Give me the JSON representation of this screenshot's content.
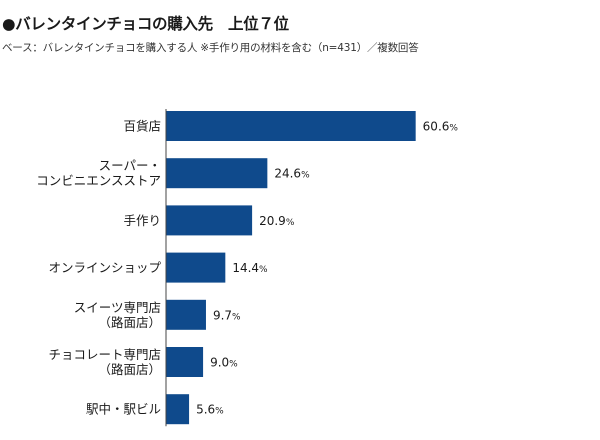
{
  "title": "●バレンタインチョコの購入先　上位７位",
  "subtitle": "ベース：バレンタインチョコを購入する人 ※手作り用の材料を含む（n=431）／複数回答",
  "chart_data": {
    "type": "bar",
    "orientation": "horizontal",
    "categories": [
      [
        "百貨店"
      ],
      [
        "スーパー・",
        "コンビニエンスストア"
      ],
      [
        "手作り"
      ],
      [
        "オンラインショップ"
      ],
      [
        "スイーツ専門店",
        "（路面店）"
      ],
      [
        "チョコレート専門店",
        "（路面店）"
      ],
      [
        "駅中・駅ビル"
      ]
    ],
    "values": [
      60.6,
      24.6,
      20.9,
      14.4,
      9.7,
      9.0,
      5.6
    ],
    "value_labels": [
      "60.6",
      "24.6",
      "20.9",
      "14.4",
      "9.7",
      "9.0",
      "5.6"
    ],
    "unit": "%",
    "bar_color": "#0f4a8c",
    "grid": false,
    "legend": "none"
  }
}
